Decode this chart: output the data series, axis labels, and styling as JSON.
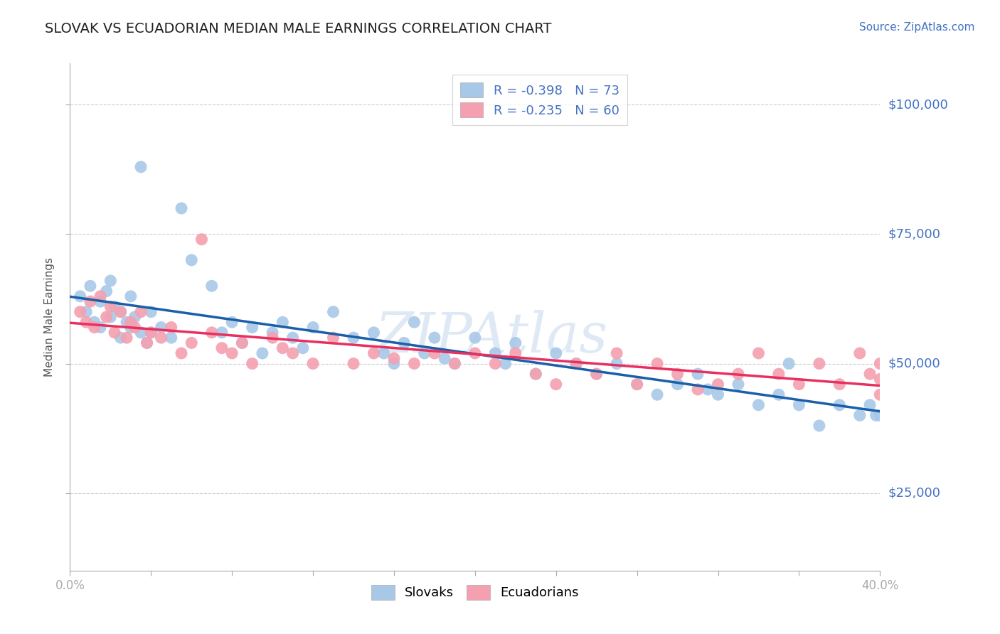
{
  "title": "SLOVAK VS ECUADORIAN MEDIAN MALE EARNINGS CORRELATION CHART",
  "source": "Source: ZipAtlas.com",
  "ylabel": "Median Male Earnings",
  "xlim": [
    0.0,
    0.4
  ],
  "ylim": [
    10000,
    108000
  ],
  "yticks": [
    25000,
    50000,
    75000,
    100000
  ],
  "ytick_labels": [
    "$25,000",
    "$50,000",
    "$75,000",
    "$100,000"
  ],
  "xticks": [
    0.0,
    0.04,
    0.08,
    0.12,
    0.16,
    0.2,
    0.24,
    0.28,
    0.32,
    0.36,
    0.4
  ],
  "xtick_labels": [
    "0.0%",
    "",
    "",
    "",
    "",
    "",
    "",
    "",
    "",
    "",
    "40.0%"
  ],
  "legend_blue_r": "R = -0.398",
  "legend_blue_n": "N = 73",
  "legend_pink_r": "R = -0.235",
  "legend_pink_n": "N = 60",
  "blue_color": "#a8c8e8",
  "pink_color": "#f4a0b0",
  "line_blue_color": "#1a5fa8",
  "line_pink_color": "#e83060",
  "background_color": "#ffffff",
  "grid_color": "#cccccc",
  "axis_label_color": "#4472c4",
  "title_color": "#222222",
  "watermark": "ZIPAtlas",
  "slovak_x": [
    0.005,
    0.008,
    0.01,
    0.012,
    0.015,
    0.015,
    0.018,
    0.02,
    0.02,
    0.022,
    0.025,
    0.025,
    0.028,
    0.03,
    0.03,
    0.032,
    0.035,
    0.035,
    0.038,
    0.04,
    0.04,
    0.045,
    0.05,
    0.055,
    0.06,
    0.07,
    0.075,
    0.08,
    0.085,
    0.09,
    0.095,
    0.1,
    0.105,
    0.11,
    0.115,
    0.12,
    0.13,
    0.14,
    0.15,
    0.155,
    0.16,
    0.165,
    0.17,
    0.175,
    0.18,
    0.185,
    0.19,
    0.2,
    0.21,
    0.215,
    0.22,
    0.23,
    0.24,
    0.25,
    0.26,
    0.27,
    0.28,
    0.29,
    0.3,
    0.31,
    0.315,
    0.32,
    0.33,
    0.34,
    0.35,
    0.355,
    0.36,
    0.37,
    0.38,
    0.39,
    0.395,
    0.398,
    0.4
  ],
  "slovak_y": [
    63000,
    60000,
    65000,
    58000,
    62000,
    57000,
    64000,
    66000,
    59000,
    61000,
    60000,
    55000,
    58000,
    63000,
    57000,
    59000,
    56000,
    88000,
    54000,
    60000,
    56000,
    57000,
    55000,
    80000,
    70000,
    65000,
    56000,
    58000,
    54000,
    57000,
    52000,
    56000,
    58000,
    55000,
    53000,
    57000,
    60000,
    55000,
    56000,
    52000,
    50000,
    54000,
    58000,
    52000,
    55000,
    51000,
    50000,
    55000,
    52000,
    50000,
    54000,
    48000,
    52000,
    50000,
    48000,
    50000,
    46000,
    44000,
    46000,
    48000,
    45000,
    44000,
    46000,
    42000,
    44000,
    50000,
    42000,
    38000,
    42000,
    40000,
    42000,
    40000,
    40000
  ],
  "ecuadorian_x": [
    0.005,
    0.008,
    0.01,
    0.012,
    0.015,
    0.018,
    0.02,
    0.022,
    0.025,
    0.028,
    0.03,
    0.032,
    0.035,
    0.038,
    0.04,
    0.045,
    0.05,
    0.055,
    0.06,
    0.065,
    0.07,
    0.075,
    0.08,
    0.085,
    0.09,
    0.1,
    0.105,
    0.11,
    0.12,
    0.13,
    0.14,
    0.15,
    0.16,
    0.17,
    0.18,
    0.19,
    0.2,
    0.21,
    0.22,
    0.23,
    0.24,
    0.25,
    0.26,
    0.27,
    0.28,
    0.29,
    0.3,
    0.31,
    0.32,
    0.33,
    0.34,
    0.35,
    0.36,
    0.37,
    0.38,
    0.39,
    0.395,
    0.4,
    0.4,
    0.4
  ],
  "ecuadorian_y": [
    60000,
    58000,
    62000,
    57000,
    63000,
    59000,
    61000,
    56000,
    60000,
    55000,
    58000,
    57000,
    60000,
    54000,
    56000,
    55000,
    57000,
    52000,
    54000,
    74000,
    56000,
    53000,
    52000,
    54000,
    50000,
    55000,
    53000,
    52000,
    50000,
    55000,
    50000,
    52000,
    51000,
    50000,
    52000,
    50000,
    52000,
    50000,
    52000,
    48000,
    46000,
    50000,
    48000,
    52000,
    46000,
    50000,
    48000,
    45000,
    46000,
    48000,
    52000,
    48000,
    46000,
    50000,
    46000,
    52000,
    48000,
    47000,
    50000,
    44000
  ]
}
